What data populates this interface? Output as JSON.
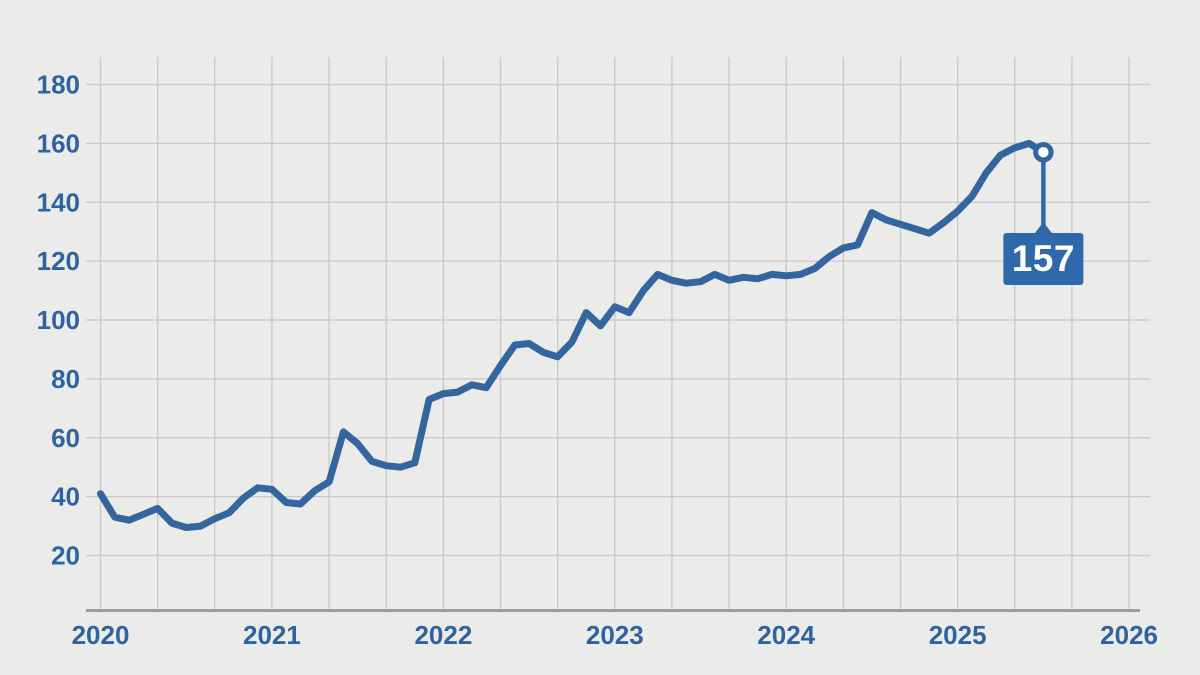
{
  "figure": {
    "background": "#ebebe9"
  },
  "chart_data": {
    "type": "line",
    "title": "",
    "x_axis": {
      "tick_labels": [
        "2020",
        "2021",
        "2022",
        "2023",
        "2024",
        "2025",
        "2026"
      ],
      "range": [
        2020,
        2026
      ],
      "minor_divisions_per_year": 3
    },
    "y_axis": {
      "tick_labels": [
        "180",
        "160",
        "140",
        "120",
        "100",
        "80",
        "60",
        "40",
        "20"
      ],
      "tick_values": [
        180,
        160,
        140,
        120,
        100,
        80,
        60,
        40,
        20
      ],
      "range_shown": [
        20,
        180
      ],
      "tick_step": 20
    },
    "grid": true,
    "legend": false,
    "series": [
      {
        "name": "index-value",
        "start": "2020-01",
        "frequency": "monthly",
        "values": [
          41,
          33,
          32,
          34,
          36,
          31,
          29.5,
          30,
          32.5,
          34.5,
          39.5,
          43,
          42.5,
          38,
          37.5,
          42,
          45,
          62,
          58,
          52,
          50.5,
          50,
          51.5,
          73,
          75,
          75.5,
          78,
          77,
          84.5,
          91.5,
          92,
          89,
          87.5,
          92.5,
          102.5,
          98,
          104.5,
          102.5,
          110,
          115.5,
          113.5,
          112.5,
          113,
          115.5,
          113.5,
          114.5,
          114,
          115.5,
          115,
          115.5,
          117.5,
          121.5,
          124.5,
          125.5,
          136.5,
          134,
          132.5,
          131,
          129.5,
          133,
          137,
          142,
          150,
          156,
          158.5,
          160,
          157
        ]
      }
    ],
    "annotation": {
      "label": "157",
      "value": 157,
      "position": "2025-07",
      "style": "callout-box-below-endpoint-marker"
    },
    "colors": {
      "line": "#33669f",
      "callout_box": "#3069ab",
      "callout_text": "#ffffff",
      "tick_label": "#2f639f",
      "gridline": "#c7c7c5",
      "axis_line": "#9d9d9b",
      "marker_fill": "#ffffff",
      "background": "#ebebe9"
    }
  }
}
